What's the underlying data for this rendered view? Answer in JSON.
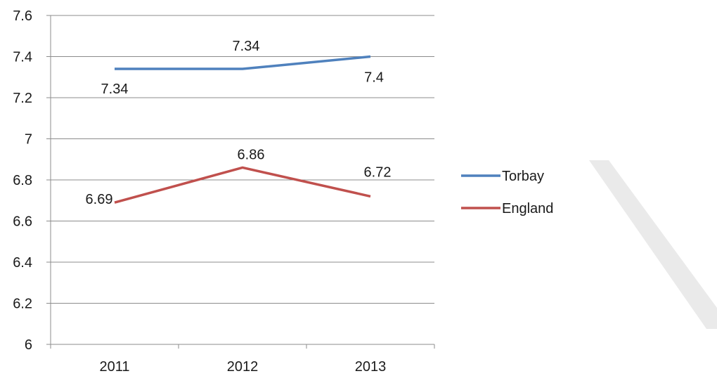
{
  "chart_data": {
    "type": "line",
    "categories": [
      "2011",
      "2012",
      "2013"
    ],
    "series": [
      {
        "name": "Torbay",
        "values": [
          7.34,
          7.34,
          7.4
        ],
        "color": "#4f81bd"
      },
      {
        "name": "England",
        "values": [
          6.69,
          6.86,
          6.72
        ],
        "color": "#c0504d"
      }
    ],
    "ylim": [
      6,
      7.6
    ],
    "yticks": [
      "6",
      "6.2",
      "6.4",
      "6.6",
      "6.8",
      "7",
      "7.2",
      "7.4",
      "7.6"
    ],
    "data_labels": {
      "Torbay": [
        "7.34",
        "7.34",
        "7.4"
      ],
      "England": [
        "6.69",
        "6.86",
        "6.72"
      ]
    },
    "grid": true,
    "legend": "right",
    "title": "",
    "xlabel": "",
    "ylabel": ""
  }
}
